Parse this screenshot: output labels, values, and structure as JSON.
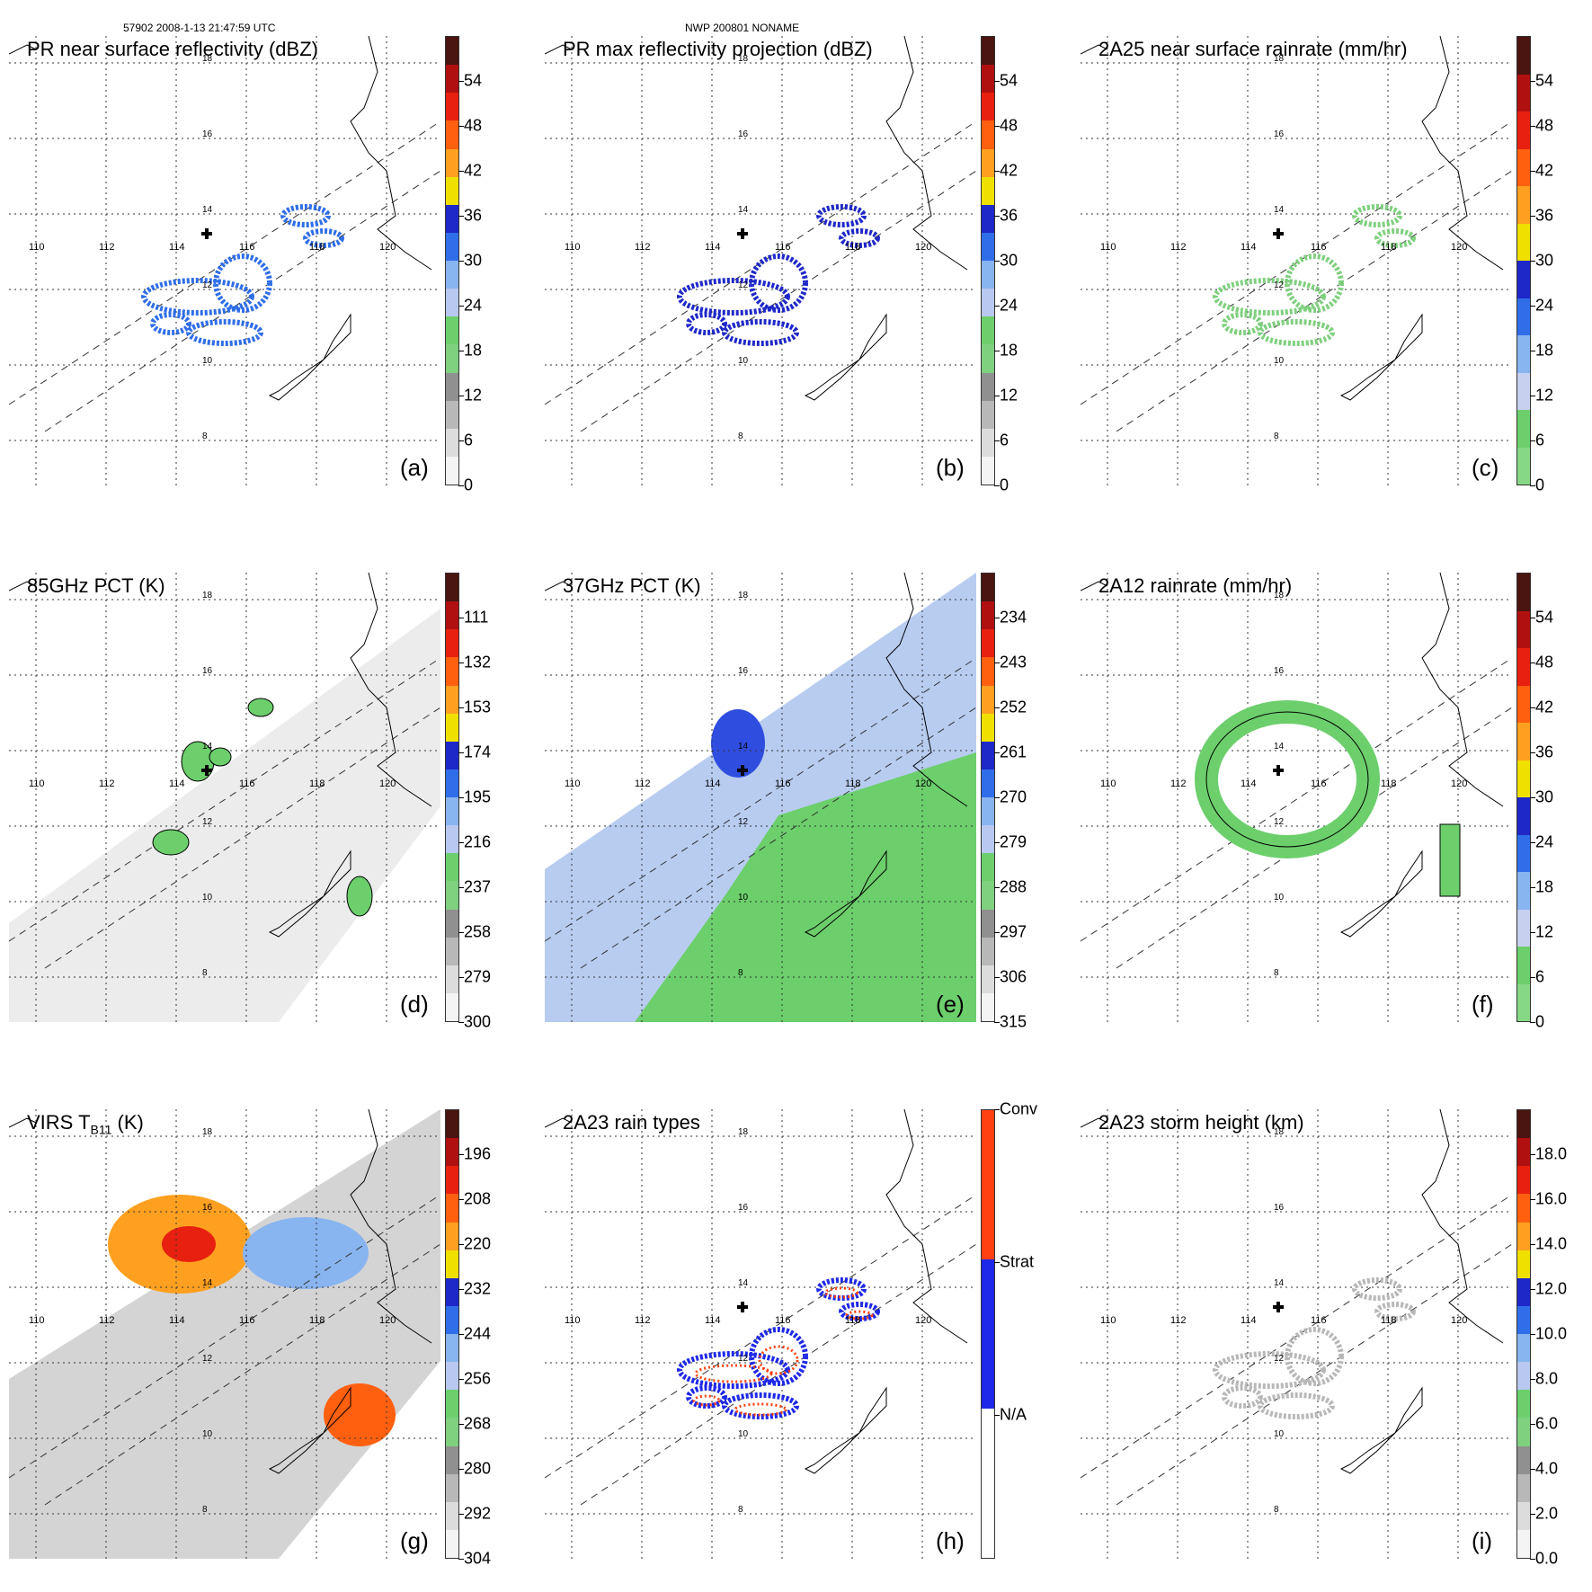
{
  "header": {
    "left": "57902 2008-1-13 21:47:59 UTC",
    "center": "NWP 200801 NONAME"
  },
  "axes": {
    "lons": [
      "110",
      "112",
      "114",
      "116",
      "118",
      "120"
    ],
    "lats": [
      "18",
      "16",
      "14",
      "12",
      "10",
      "8"
    ]
  },
  "panels": [
    {
      "id": "a",
      "title": "PR near surface reflectivity (dBZ)",
      "label": "(a)",
      "ticks": [
        "54",
        "48",
        "42",
        "36",
        "30",
        "24",
        "18",
        "12",
        "6",
        "0"
      ],
      "colors": [
        "#4a1410",
        "#b01010",
        "#e82010",
        "#ff6010",
        "#ffa020",
        "#f0e000",
        "#1e28c8",
        "#2f6ee8",
        "#88b4f0",
        "#b8c8f0",
        "#6ccf6c",
        "#7fd07f",
        "#909090",
        "#b8b8b8",
        "#dcdcdc",
        "#f4f4f4"
      ]
    },
    {
      "id": "b",
      "title": "PR max reflectivity projection (dBZ)",
      "label": "(b)",
      "ticks": [
        "54",
        "48",
        "42",
        "36",
        "30",
        "24",
        "18",
        "12",
        "6",
        "0"
      ],
      "colors": [
        "#4a1410",
        "#b01010",
        "#e82010",
        "#ff6010",
        "#ffa020",
        "#f0e000",
        "#1e28c8",
        "#2f6ee8",
        "#88b4f0",
        "#b8c8f0",
        "#6ccf6c",
        "#7fd07f",
        "#909090",
        "#b8b8b8",
        "#dcdcdc",
        "#f4f4f4"
      ]
    },
    {
      "id": "c",
      "title": "2A25 near surface rainrate (mm/hr)",
      "label": "(c)",
      "ticks": [
        "54",
        "48",
        "42",
        "36",
        "30",
        "24",
        "18",
        "12",
        "6",
        "0"
      ],
      "colors": [
        "#4a1410",
        "#b01010",
        "#e82010",
        "#ff6010",
        "#ffa020",
        "#f0e000",
        "#1e28c8",
        "#2f6ee8",
        "#88b4f0",
        "#c8d0f0",
        "#6ccf6c",
        "#86d886"
      ]
    },
    {
      "id": "d",
      "title": "85GHz PCT (K)",
      "label": "(d)",
      "ticks": [
        "111",
        "132",
        "153",
        "174",
        "195",
        "216",
        "237",
        "258",
        "279",
        "300"
      ],
      "colors": [
        "#4a1410",
        "#b01010",
        "#e82010",
        "#ff6010",
        "#ffa020",
        "#f0e000",
        "#1e28c8",
        "#2f6ee8",
        "#88b4f0",
        "#b8c8f0",
        "#6ccf6c",
        "#7fd07f",
        "#909090",
        "#b8b8b8",
        "#dcdcdc",
        "#f4f4f4"
      ]
    },
    {
      "id": "e",
      "title": "37GHz PCT (K)",
      "label": "(e)",
      "ticks": [
        "234",
        "243",
        "252",
        "261",
        "270",
        "279",
        "288",
        "297",
        "306",
        "315"
      ],
      "colors": [
        "#4a1410",
        "#b01010",
        "#e82010",
        "#ff6010",
        "#ffa020",
        "#f0e000",
        "#1e28c8",
        "#2f6ee8",
        "#88b4f0",
        "#b8c8f0",
        "#6ccf6c",
        "#7fd07f",
        "#909090",
        "#b8b8b8",
        "#dcdcdc",
        "#f4f4f4"
      ]
    },
    {
      "id": "f",
      "title": "2A12 rainrate (mm/hr)",
      "label": "(f)",
      "ticks": [
        "54",
        "48",
        "42",
        "36",
        "30",
        "24",
        "18",
        "12",
        "6",
        "0"
      ],
      "colors": [
        "#4a1410",
        "#b01010",
        "#e82010",
        "#ff6010",
        "#ffa020",
        "#f0e000",
        "#1e28c8",
        "#2f6ee8",
        "#88b4f0",
        "#c8d0f0",
        "#6ccf6c",
        "#86d886"
      ]
    },
    {
      "id": "g",
      "title": "VIRS T",
      "title_sub": "B11",
      "title_tail": " (K)",
      "label": "(g)",
      "ticks": [
        "196",
        "208",
        "220",
        "232",
        "244",
        "256",
        "268",
        "280",
        "292",
        "304"
      ],
      "colors": [
        "#4a1410",
        "#b01010",
        "#e82010",
        "#ff6010",
        "#ffa020",
        "#f0e000",
        "#1e28c8",
        "#2f6ee8",
        "#88b4f0",
        "#b8c8f0",
        "#6ccf6c",
        "#7fd07f",
        "#909090",
        "#b8b8b8",
        "#dcdcdc",
        "#f4f4f4"
      ]
    },
    {
      "id": "h",
      "title": "2A23 rain types",
      "label": "(h)",
      "ticks": [
        "Conv",
        "Strat",
        "N/A"
      ],
      "colors": [
        "#ff4010",
        "#1e28e8",
        "#ffffff"
      ]
    },
    {
      "id": "i",
      "title": "2A23 storm height (km)",
      "label": "(i)",
      "ticks": [
        "18.0",
        "16.0",
        "14.0",
        "12.0",
        "10.0",
        "8.0",
        "6.0",
        "4.0",
        "2.0",
        "0.0"
      ],
      "colors": [
        "#4a1410",
        "#b01010",
        "#e82010",
        "#ff6010",
        "#ffa020",
        "#f0e000",
        "#1e28c8",
        "#2f6ee8",
        "#88b4f0",
        "#b8c8f0",
        "#6ccf6c",
        "#7fd07f",
        "#909090",
        "#b8b8b8",
        "#dcdcdc",
        "#f4f4f4"
      ]
    }
  ]
}
